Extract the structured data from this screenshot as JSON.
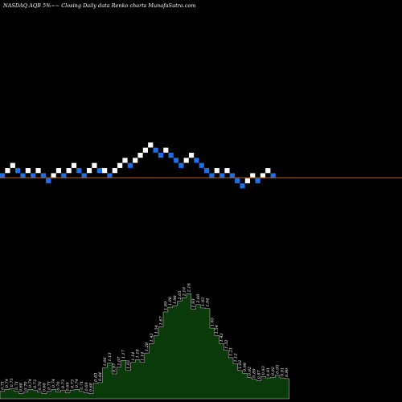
{
  "chart_data": {
    "type": "renko",
    "title": "NASDAQ AQB 5%~~ Closing Daily data Renko charts MunafaSutra.com",
    "colors": {
      "background": "#000000",
      "up_brick": "#ffffff",
      "down_brick": "#1e6fe6",
      "reference_line": "#b5651d",
      "volume_fill": "#0a3a0a",
      "volume_stroke": "#ffffff"
    },
    "bricks": [
      {
        "level": 0,
        "dir": "down"
      },
      {
        "level": 1,
        "dir": "up"
      },
      {
        "level": 2,
        "dir": "up"
      },
      {
        "level": 1,
        "dir": "down"
      },
      {
        "level": 0,
        "dir": "down"
      },
      {
        "level": 1,
        "dir": "up"
      },
      {
        "level": 0,
        "dir": "down"
      },
      {
        "level": 1,
        "dir": "up"
      },
      {
        "level": 0,
        "dir": "down"
      },
      {
        "level": -1,
        "dir": "down"
      },
      {
        "level": 0,
        "dir": "up"
      },
      {
        "level": 1,
        "dir": "up"
      },
      {
        "level": 0,
        "dir": "down"
      },
      {
        "level": 1,
        "dir": "up"
      },
      {
        "level": 2,
        "dir": "up"
      },
      {
        "level": 1,
        "dir": "down"
      },
      {
        "level": 0,
        "dir": "down"
      },
      {
        "level": 1,
        "dir": "up"
      },
      {
        "level": 2,
        "dir": "up"
      },
      {
        "level": 1,
        "dir": "down"
      },
      {
        "level": 1,
        "dir": "up"
      },
      {
        "level": 0,
        "dir": "down"
      },
      {
        "level": 1,
        "dir": "up"
      },
      {
        "level": 2,
        "dir": "up"
      },
      {
        "level": 3,
        "dir": "up"
      },
      {
        "level": 2,
        "dir": "down"
      },
      {
        "level": 3,
        "dir": "up"
      },
      {
        "level": 4,
        "dir": "up"
      },
      {
        "level": 5,
        "dir": "up"
      },
      {
        "level": 6,
        "dir": "up"
      },
      {
        "level": 5,
        "dir": "down"
      },
      {
        "level": 4,
        "dir": "down"
      },
      {
        "level": 5,
        "dir": "up"
      },
      {
        "level": 4,
        "dir": "down"
      },
      {
        "level": 3,
        "dir": "down"
      },
      {
        "level": 2,
        "dir": "down"
      },
      {
        "level": 3,
        "dir": "up"
      },
      {
        "level": 4,
        "dir": "up"
      },
      {
        "level": 3,
        "dir": "down"
      },
      {
        "level": 2,
        "dir": "down"
      },
      {
        "level": 1,
        "dir": "down"
      },
      {
        "level": 0,
        "dir": "down"
      },
      {
        "level": 1,
        "dir": "up"
      },
      {
        "level": 0,
        "dir": "down"
      },
      {
        "level": 1,
        "dir": "up"
      },
      {
        "level": 0,
        "dir": "down"
      },
      {
        "level": -1,
        "dir": "down"
      },
      {
        "level": -2,
        "dir": "down"
      },
      {
        "level": -1,
        "dir": "up"
      },
      {
        "level": 0,
        "dir": "up"
      },
      {
        "level": -1,
        "dir": "down"
      },
      {
        "level": 0,
        "dir": "up"
      },
      {
        "level": 1,
        "dir": "up"
      },
      {
        "level": 0,
        "dir": "down"
      }
    ],
    "volume": [
      {
        "x": 0,
        "value": 0.71,
        "label": "0.71"
      },
      {
        "x": 1,
        "value": 0.74,
        "label": "0.74"
      },
      {
        "x": 2,
        "value": 0.75,
        "label": "0.75"
      },
      {
        "x": 3,
        "value": 0.71,
        "label": "0.71"
      },
      {
        "x": 4,
        "value": 0.68,
        "label": "0.68"
      },
      {
        "x": 5,
        "value": 0.7,
        "label": "0.70"
      },
      {
        "x": 6,
        "value": 0.74,
        "label": "0.74"
      },
      {
        "x": 7,
        "value": 0.73,
        "label": "0.73"
      },
      {
        "x": 8,
        "value": 0.7,
        "label": "0.70"
      },
      {
        "x": 9,
        "value": 0.68,
        "label": "0.68"
      },
      {
        "x": 10,
        "value": 0.71,
        "label": "0.71"
      },
      {
        "x": 11,
        "value": 0.74,
        "label": "0.74"
      },
      {
        "x": 12,
        "value": 0.7,
        "label": "0.70"
      },
      {
        "x": 13,
        "value": 0.73,
        "label": "0.73"
      },
      {
        "x": 14,
        "value": 0.69,
        "label": "0.69"
      },
      {
        "x": 15,
        "value": 0.73,
        "label": "0.73"
      },
      {
        "x": 16,
        "value": 0.74,
        "label": "0.74"
      },
      {
        "x": 17,
        "value": 0.71,
        "label": "0.71"
      },
      {
        "x": 18,
        "value": 0.69,
        "label": "0.69"
      },
      {
        "x": 19,
        "value": 0.68,
        "label": "0.68"
      },
      {
        "x": 20,
        "value": 0.83,
        "label": "0.83"
      },
      {
        "x": 21,
        "value": 0.84,
        "label": "0.84"
      },
      {
        "x": 22,
        "value": 1.06,
        "label": "1.06"
      },
      {
        "x": 23,
        "value": 1.13,
        "label": "1.13"
      },
      {
        "x": 24,
        "value": 0.97,
        "label": "0.97"
      },
      {
        "x": 25,
        "value": 1.07,
        "label": "1.07"
      },
      {
        "x": 26,
        "value": 1.17,
        "label": "1.17"
      },
      {
        "x": 27,
        "value": 1.02,
        "label": "1.02"
      },
      {
        "x": 28,
        "value": 1.14,
        "label": "1.14"
      },
      {
        "x": 29,
        "value": 1.18,
        "label": "1.18"
      },
      {
        "x": 30,
        "value": 1.14,
        "label": "1.14"
      },
      {
        "x": 31,
        "value": 1.28,
        "label": "1.28"
      },
      {
        "x": 32,
        "value": 1.42,
        "label": "1.42"
      },
      {
        "x": 33,
        "value": 1.54,
        "label": "1.54"
      },
      {
        "x": 34,
        "value": 1.67,
        "label": "1.67"
      },
      {
        "x": 35,
        "value": 1.89,
        "label": "1.89"
      },
      {
        "x": 36,
        "value": 1.96,
        "label": "1.96"
      },
      {
        "x": 37,
        "value": 1.98,
        "label": "1.98"
      },
      {
        "x": 38,
        "value": 2.05,
        "label": "2.05"
      },
      {
        "x": 39,
        "value": 2.1,
        "label": "2.10"
      },
      {
        "x": 40,
        "value": 2.16,
        "label": "2.16"
      },
      {
        "x": 41,
        "value": 1.93,
        "label": "1.93"
      },
      {
        "x": 42,
        "value": 2.0,
        "label": "2.00"
      },
      {
        "x": 43,
        "value": 1.95,
        "label": "1.95"
      },
      {
        "x": 44,
        "value": 1.94,
        "label": "1.94"
      },
      {
        "x": 45,
        "value": 1.65,
        "label": "1.65"
      },
      {
        "x": 46,
        "value": 1.54,
        "label": "1.54"
      },
      {
        "x": 47,
        "value": 1.42,
        "label": "1.42"
      },
      {
        "x": 48,
        "value": 1.32,
        "label": "1.32"
      },
      {
        "x": 49,
        "value": 1.21,
        "label": "1.21"
      },
      {
        "x": 50,
        "value": 1.12,
        "label": "1.12"
      },
      {
        "x": 51,
        "value": 1.02,
        "label": "1.02"
      },
      {
        "x": 52,
        "value": 0.98,
        "label": "0.98"
      },
      {
        "x": 53,
        "value": 0.92,
        "label": "0.92"
      },
      {
        "x": 54,
        "value": 0.89,
        "label": "0.89"
      },
      {
        "x": 55,
        "value": 0.87,
        "label": "0.87"
      },
      {
        "x": 56,
        "value": 0.93,
        "label": "0.93"
      },
      {
        "x": 57,
        "value": 0.91,
        "label": "0.91"
      },
      {
        "x": 58,
        "value": 0.92,
        "label": "0.92"
      },
      {
        "x": 59,
        "value": 0.95,
        "label": "0.95"
      },
      {
        "x": 60,
        "value": 0.91,
        "label": "0.91"
      },
      {
        "x": 61,
        "value": 0.9,
        "label": "0.90"
      }
    ]
  }
}
